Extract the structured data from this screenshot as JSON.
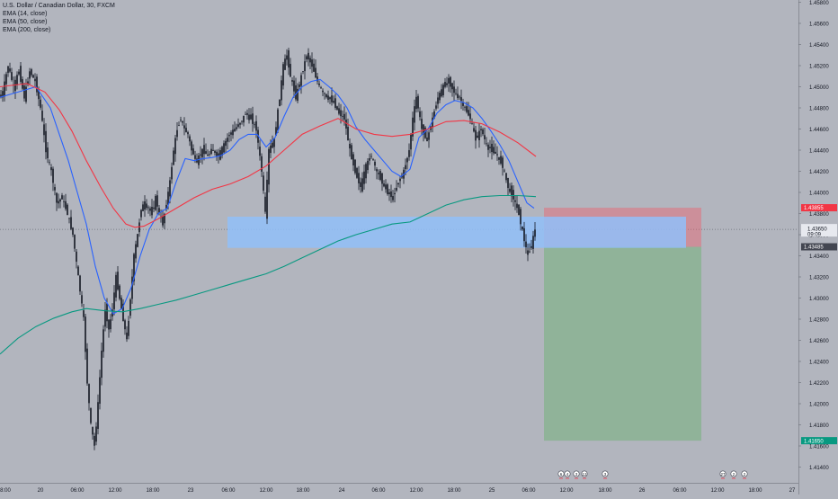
{
  "header": {
    "title": "U.S. Dollar / Canadian Dollar, 30, FXCM",
    "indicators": [
      "EMA (14, close)",
      "EMA (50, close)",
      "EMA (200, close)"
    ]
  },
  "colors": {
    "background": "#b2b5be",
    "candle": "#131722",
    "ema14": "#2962ff",
    "ema50": "#f23645",
    "ema200": "#089981",
    "zone": "#90bff9",
    "stop_zone": "#f7525f",
    "target_zone": "#4caf50",
    "last_price": "#131722",
    "stop_label": "#f23645",
    "target_label": "#089981"
  },
  "chart_data": {
    "type": "candlestick",
    "symbol": "U.S. Dollar / Canadian Dollar, 30, FXCM",
    "ylim": [
      1.4116,
      1.4582
    ],
    "y_ticks": [
      "1.45800",
      "1.45600",
      "1.45400",
      "1.45200",
      "1.45000",
      "1.44800",
      "1.44600",
      "1.44400",
      "1.44200",
      "1.44000",
      "1.43800",
      "1.43600",
      "1.43400",
      "1.43200",
      "1.43000",
      "1.42800",
      "1.42600",
      "1.42400",
      "1.42200",
      "1.42000",
      "1.41800",
      "1.41600",
      "1.41400"
    ],
    "x_ticks": [
      "8:00",
      "20",
      "06:00",
      "12:00",
      "18:00",
      "23",
      "06:00",
      "12:00",
      "18:00",
      "24",
      "06:00",
      "12:00",
      "18:00",
      "25",
      "06:00",
      "12:00",
      "18:00",
      "26",
      "06:00",
      "12:00",
      "18:00",
      "27"
    ],
    "price_labels": {
      "stop": {
        "value": 1.43855,
        "text": "1.43855"
      },
      "current": {
        "value": 1.4365,
        "text": "1.43650",
        "countdown": "09:09"
      },
      "entry": {
        "value": 1.43485,
        "text": "1.43485"
      },
      "target": {
        "value": 1.4165,
        "text": "1.41650"
      }
    },
    "zone": {
      "top": 1.4377,
      "bottom": 1.43475
    },
    "position": {
      "entry": 1.43485,
      "stop": 1.43855,
      "target": 1.4165
    },
    "path_points": [
      [
        0,
        1.449
      ],
      [
        4,
        1.4495
      ],
      [
        10,
        1.452
      ],
      [
        16,
        1.45
      ],
      [
        22,
        1.4515
      ],
      [
        28,
        1.449
      ],
      [
        34,
        1.4515
      ],
      [
        40,
        1.4505
      ],
      [
        46,
        1.448
      ],
      [
        52,
        1.444
      ],
      [
        58,
        1.442
      ],
      [
        64,
        1.439
      ],
      [
        70,
        1.4395
      ],
      [
        76,
        1.438
      ],
      [
        82,
        1.436
      ],
      [
        88,
        1.432
      ],
      [
        94,
        1.428
      ],
      [
        98,
        1.422
      ],
      [
        102,
        1.418
      ],
      [
        106,
        1.416
      ],
      [
        110,
        1.42
      ],
      [
        114,
        1.425
      ],
      [
        118,
        1.429
      ],
      [
        122,
        1.427
      ],
      [
        126,
        1.429
      ],
      [
        130,
        1.432
      ],
      [
        134,
        1.43
      ],
      [
        138,
        1.428
      ],
      [
        142,
        1.426
      ],
      [
        146,
        1.43
      ],
      [
        150,
        1.434
      ],
      [
        154,
        1.436
      ],
      [
        158,
        1.4385
      ],
      [
        162,
        1.439
      ],
      [
        166,
        1.4385
      ],
      [
        170,
        1.438
      ],
      [
        174,
        1.4395
      ],
      [
        178,
        1.438
      ],
      [
        182,
        1.437
      ],
      [
        186,
        1.439
      ],
      [
        190,
        1.441
      ],
      [
        194,
        1.444
      ],
      [
        198,
        1.446
      ],
      [
        202,
        1.447
      ],
      [
        206,
        1.446
      ],
      [
        210,
        1.4455
      ],
      [
        214,
        1.444
      ],
      [
        220,
        1.443
      ],
      [
        226,
        1.444
      ],
      [
        232,
        1.4435
      ],
      [
        238,
        1.444
      ],
      [
        244,
        1.4435
      ],
      [
        250,
        1.4445
      ],
      [
        256,
        1.4455
      ],
      [
        262,
        1.446
      ],
      [
        268,
        1.4465
      ],
      [
        274,
        1.4475
      ],
      [
        280,
        1.447
      ],
      [
        286,
        1.446
      ],
      [
        292,
        1.442
      ],
      [
        296,
        1.438
      ],
      [
        300,
        1.444
      ],
      [
        306,
        1.445
      ],
      [
        312,
        1.449
      ],
      [
        316,
        1.452
      ],
      [
        320,
        1.453
      ],
      [
        324,
        1.451
      ],
      [
        330,
        1.449
      ],
      [
        336,
        1.451
      ],
      [
        342,
        1.453
      ],
      [
        348,
        1.452
      ],
      [
        354,
        1.4505
      ],
      [
        360,
        1.4495
      ],
      [
        366,
        1.449
      ],
      [
        372,
        1.4485
      ],
      [
        378,
        1.4475
      ],
      [
        384,
        1.447
      ],
      [
        390,
        1.444
      ],
      [
        396,
        1.442
      ],
      [
        402,
        1.4405
      ],
      [
        408,
        1.4425
      ],
      [
        414,
        1.4435
      ],
      [
        420,
        1.442
      ],
      [
        426,
        1.441
      ],
      [
        432,
        1.44
      ],
      [
        438,
        1.4395
      ],
      [
        444,
        1.441
      ],
      [
        450,
        1.442
      ],
      [
        456,
        1.444
      ],
      [
        460,
        1.447
      ],
      [
        464,
        1.449
      ],
      [
        470,
        1.446
      ],
      [
        476,
        1.445
      ],
      [
        482,
        1.447
      ],
      [
        488,
        1.449
      ],
      [
        494,
        1.45
      ],
      [
        500,
        1.4505
      ],
      [
        506,
        1.4495
      ],
      [
        512,
        1.449
      ],
      [
        518,
        1.448
      ],
      [
        524,
        1.447
      ],
      [
        530,
        1.445
      ],
      [
        536,
        1.446
      ],
      [
        542,
        1.4445
      ],
      [
        548,
        1.444
      ],
      [
        554,
        1.4435
      ],
      [
        560,
        1.4425
      ],
      [
        566,
        1.4405
      ],
      [
        572,
        1.4395
      ],
      [
        578,
        1.438
      ],
      [
        584,
        1.4355
      ],
      [
        588,
        1.434
      ],
      [
        592,
        1.435
      ],
      [
        596,
        1.4365
      ]
    ],
    "series": [
      {
        "name": "EMA (14, close)",
        "points": [
          [
            0,
            1.449
          ],
          [
            20,
            1.4495
          ],
          [
            40,
            1.45
          ],
          [
            56,
            1.448
          ],
          [
            66,
            1.4455
          ],
          [
            76,
            1.443
          ],
          [
            86,
            1.44
          ],
          [
            96,
            1.437
          ],
          [
            106,
            1.433
          ],
          [
            116,
            1.43
          ],
          [
            126,
            1.4285
          ],
          [
            136,
            1.429
          ],
          [
            146,
            1.431
          ],
          [
            156,
            1.434
          ],
          [
            166,
            1.4365
          ],
          [
            176,
            1.438
          ],
          [
            186,
            1.4385
          ],
          [
            196,
            1.441
          ],
          [
            206,
            1.4432
          ],
          [
            216,
            1.443
          ],
          [
            226,
            1.4432
          ],
          [
            236,
            1.4433
          ],
          [
            246,
            1.4435
          ],
          [
            256,
            1.444
          ],
          [
            266,
            1.445
          ],
          [
            276,
            1.4455
          ],
          [
            286,
            1.4455
          ],
          [
            296,
            1.4443
          ],
          [
            306,
            1.4452
          ],
          [
            316,
            1.4472
          ],
          [
            326,
            1.449
          ],
          [
            336,
            1.45
          ],
          [
            346,
            1.4505
          ],
          [
            356,
            1.4507
          ],
          [
            366,
            1.45
          ],
          [
            376,
            1.4492
          ],
          [
            386,
            1.448
          ],
          [
            396,
            1.4462
          ],
          [
            406,
            1.445
          ],
          [
            416,
            1.444
          ],
          [
            426,
            1.443
          ],
          [
            436,
            1.442
          ],
          [
            446,
            1.4415
          ],
          [
            456,
            1.4422
          ],
          [
            466,
            1.4452
          ],
          [
            476,
            1.446
          ],
          [
            486,
            1.4475
          ],
          [
            496,
            1.4483
          ],
          [
            506,
            1.4487
          ],
          [
            516,
            1.4485
          ],
          [
            526,
            1.448
          ],
          [
            536,
            1.447
          ],
          [
            546,
            1.4458
          ],
          [
            556,
            1.4445
          ],
          [
            566,
            1.443
          ],
          [
            576,
            1.441
          ],
          [
            586,
            1.439
          ],
          [
            594,
            1.4385
          ]
        ]
      },
      {
        "name": "EMA (50, close)",
        "points": [
          [
            0,
            1.45
          ],
          [
            30,
            1.4503
          ],
          [
            50,
            1.4495
          ],
          [
            66,
            1.4478
          ],
          [
            80,
            1.4458
          ],
          [
            96,
            1.443
          ],
          [
            112,
            1.4405
          ],
          [
            126,
            1.4385
          ],
          [
            140,
            1.437
          ],
          [
            150,
            1.4367
          ],
          [
            160,
            1.4368
          ],
          [
            176,
            1.4375
          ],
          [
            196,
            1.4385
          ],
          [
            216,
            1.4395
          ],
          [
            236,
            1.4403
          ],
          [
            256,
            1.4408
          ],
          [
            276,
            1.4415
          ],
          [
            296,
            1.4425
          ],
          [
            316,
            1.444
          ],
          [
            336,
            1.4455
          ],
          [
            356,
            1.4463
          ],
          [
            376,
            1.447
          ],
          [
            396,
            1.446
          ],
          [
            416,
            1.4455
          ],
          [
            436,
            1.4453
          ],
          [
            456,
            1.4455
          ],
          [
            476,
            1.446
          ],
          [
            496,
            1.4467
          ],
          [
            516,
            1.4468
          ],
          [
            536,
            1.4465
          ],
          [
            556,
            1.4457
          ],
          [
            576,
            1.4447
          ],
          [
            596,
            1.4434
          ]
        ]
      },
      {
        "name": "EMA (200, close)",
        "points": [
          [
            0,
            1.4247
          ],
          [
            20,
            1.4262
          ],
          [
            40,
            1.4273
          ],
          [
            60,
            1.4281
          ],
          [
            80,
            1.4287
          ],
          [
            96,
            1.429
          ],
          [
            116,
            1.4288
          ],
          [
            136,
            1.4287
          ],
          [
            156,
            1.429
          ],
          [
            176,
            1.4294
          ],
          [
            196,
            1.4298
          ],
          [
            216,
            1.4303
          ],
          [
            236,
            1.4308
          ],
          [
            256,
            1.4313
          ],
          [
            276,
            1.4318
          ],
          [
            296,
            1.4323
          ],
          [
            316,
            1.433
          ],
          [
            336,
            1.4338
          ],
          [
            356,
            1.4346
          ],
          [
            376,
            1.4354
          ],
          [
            396,
            1.436
          ],
          [
            416,
            1.4365
          ],
          [
            436,
            1.437
          ],
          [
            456,
            1.4372
          ],
          [
            476,
            1.438
          ],
          [
            496,
            1.4388
          ],
          [
            516,
            1.4393
          ],
          [
            536,
            1.4396
          ],
          [
            556,
            1.4397
          ],
          [
            576,
            1.4397
          ],
          [
            596,
            1.4396
          ]
        ]
      }
    ],
    "event_markers": [
      {
        "texts": [
          "6",
          "4"
        ]
      },
      {
        "texts": [
          "3",
          "12"
        ]
      },
      {
        "texts": [
          "3"
        ]
      },
      {
        "texts": [
          "27",
          "2",
          "2"
        ]
      }
    ]
  }
}
